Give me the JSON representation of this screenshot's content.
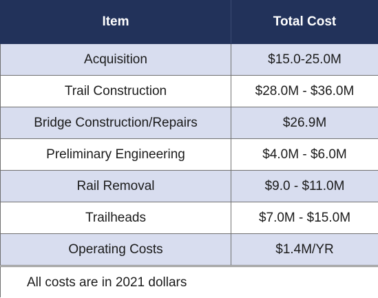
{
  "table": {
    "headers": [
      "Item",
      "Total Cost"
    ],
    "rows": [
      {
        "item": "Acquisition",
        "cost": "$15.0-25.0M"
      },
      {
        "item": "Trail Construction",
        "cost": "$28.0M - $36.0M"
      },
      {
        "item": "Bridge Construction/Repairs",
        "cost": "$26.9M"
      },
      {
        "item": "Preliminary Engineering",
        "cost": "$4.0M - $6.0M"
      },
      {
        "item": "Rail Removal",
        "cost": "$9.0 - $11.0M"
      },
      {
        "item": "Trailheads",
        "cost": "$7.0M - $15.0M"
      },
      {
        "item": "Operating Costs",
        "cost": "$1.4M/YR"
      }
    ]
  },
  "note": "All costs are in 2021 dollars",
  "colors": {
    "header_bg": "#22325a",
    "header_text": "#ffffff",
    "shaded_row": "#d8ddef",
    "plain_row": "#ffffff",
    "border": "#6f6f6f"
  }
}
